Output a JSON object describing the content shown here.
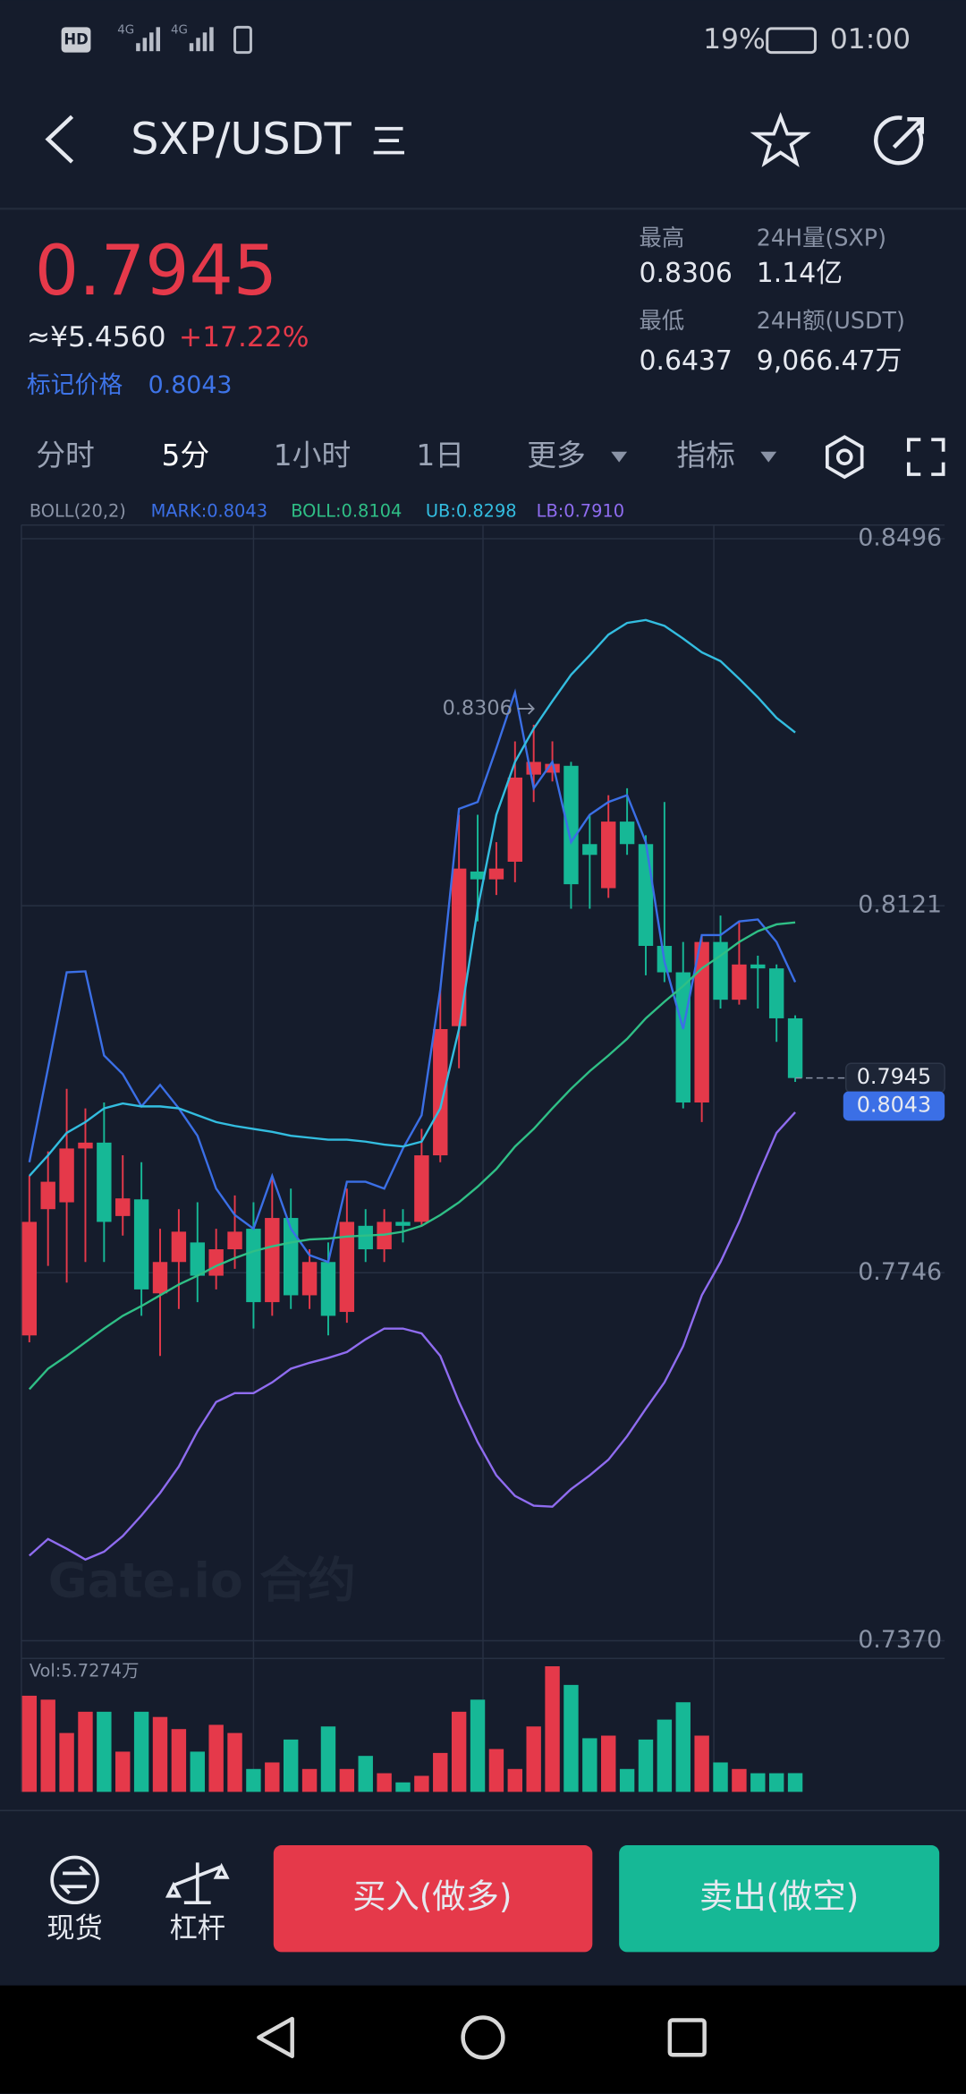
{
  "status_bar": {
    "hd": "HD",
    "network": [
      "4G",
      "4G"
    ],
    "battery": "19%",
    "time": "01:00"
  },
  "header": {
    "pair": "SXP/USDT"
  },
  "ticker": {
    "price": "0.7945",
    "cny": "≈¥5.4560",
    "change": "+17.22%",
    "mark_label": "标记价格",
    "mark_price": "0.8043",
    "stats": [
      {
        "label": "最高",
        "value": "0.8306"
      },
      {
        "label": "24H量(SXP)",
        "value": "1.14亿"
      },
      {
        "label": "最低",
        "value": "0.6437"
      },
      {
        "label": "24H额(USDT)",
        "value": "9,066.47万"
      }
    ]
  },
  "tabs": [
    "分时",
    "5分",
    "1小时",
    "1日",
    "更多",
    "指标"
  ],
  "active_tab": 1,
  "chart_data": {
    "type": "candlestick",
    "indicator": "BOLL(20,2)",
    "watermark": "Gate.io 合约",
    "up_color": "#e5394a",
    "down_color": "#16b896",
    "ylim": [
      0.7352,
      0.851
    ],
    "yticks": [
      0.8496,
      0.8121,
      0.7746,
      {
        "value": 0.737,
        "label": "0.7370"
      }
    ],
    "grid": true,
    "open": [
      0.7682,
      0.7811,
      0.7818,
      0.7873,
      0.7879,
      0.7804,
      0.7821,
      0.7725,
      0.7757,
      0.7777,
      0.7743,
      0.777,
      0.7791,
      0.7716,
      0.7802,
      0.7723,
      0.7757,
      0.7706,
      0.7794,
      0.777,
      0.7798,
      0.7798,
      0.7866,
      0.7998,
      0.8156,
      0.8148,
      0.8166,
      0.8255,
      0.8257,
      0.8264,
      0.8184,
      0.8139,
      0.8207,
      0.8184,
      0.808,
      0.8053,
      0.792,
      0.8084,
      0.8025,
      0.8061,
      0.8057,
      0.8006
    ],
    "high": [
      0.7845,
      0.787,
      0.7934,
      0.7914,
      0.792,
      0.7866,
      0.7859,
      0.7791,
      0.7811,
      0.7818,
      0.7791,
      0.7825,
      0.7818,
      0.7845,
      0.7832,
      0.777,
      0.7777,
      0.7832,
      0.7811,
      0.7811,
      0.7811,
      0.7893,
      0.8036,
      0.8214,
      0.8214,
      0.8186,
      0.8289,
      0.8306,
      0.8289,
      0.8268,
      0.8214,
      0.8234,
      0.8241,
      0.8193,
      0.8227,
      0.8084,
      0.8091,
      0.8111,
      0.8105,
      0.807,
      0.8061,
      0.8009
    ],
    "low": [
      0.7675,
      0.7753,
      0.7736,
      0.7757,
      0.7757,
      0.7784,
      0.7702,
      0.7661,
      0.7709,
      0.7716,
      0.7729,
      0.775,
      0.7689,
      0.7702,
      0.7709,
      0.7709,
      0.7682,
      0.7695,
      0.7757,
      0.7757,
      0.7777,
      0.7794,
      0.7859,
      0.7955,
      0.8105,
      0.8132,
      0.8145,
      0.8227,
      0.8248,
      0.8118,
      0.8118,
      0.8129,
      0.8173,
      0.805,
      0.8043,
      0.7914,
      0.79,
      0.8016,
      0.802,
      0.8016,
      0.7982,
      0.7941
    ],
    "close": [
      0.7798,
      0.7839,
      0.7873,
      0.7879,
      0.7798,
      0.7822,
      0.7729,
      0.7757,
      0.7788,
      0.7743,
      0.777,
      0.7788,
      0.7716,
      0.7802,
      0.7723,
      0.7757,
      0.7702,
      0.7798,
      0.777,
      0.7798,
      0.7794,
      0.7866,
      0.7995,
      0.8159,
      0.8148,
      0.8159,
      0.8252,
      0.8268,
      0.8266,
      0.8143,
      0.8173,
      0.8207,
      0.8184,
      0.808,
      0.8053,
      0.792,
      0.8084,
      0.8025,
      0.8061,
      0.8057,
      0.8006,
      0.7945
    ],
    "series": [
      {
        "legend": "MARK:0.8043",
        "color": "#3b6fe6",
        "values": [
          0.7859,
          0.7955,
          0.8053,
          0.8054,
          0.7968,
          0.7949,
          0.7916,
          0.7938,
          0.7914,
          0.7886,
          0.7832,
          0.7805,
          0.7791,
          0.7845,
          0.7791,
          0.7764,
          0.7757,
          0.7839,
          0.7839,
          0.7832,
          0.7873,
          0.7907,
          0.8036,
          0.822,
          0.8227,
          0.8282,
          0.8339,
          0.8241,
          0.8268,
          0.8186,
          0.8214,
          0.8227,
          0.8234,
          0.8186,
          0.8064,
          0.7995,
          0.8091,
          0.8091,
          0.8105,
          0.8107,
          0.8084,
          0.8043
        ]
      },
      {
        "legend": "BOLL:0.8104",
        "color": "#2fbf86",
        "values": [
          0.7627,
          0.7648,
          0.7661,
          0.7675,
          0.7689,
          0.7702,
          0.7712,
          0.7723,
          0.7734,
          0.7743,
          0.7753,
          0.7761,
          0.7768,
          0.7773,
          0.7777,
          0.778,
          0.7781,
          0.7783,
          0.7784,
          0.7785,
          0.7788,
          0.7794,
          0.7805,
          0.7818,
          0.7834,
          0.7852,
          0.7875,
          0.7893,
          0.7914,
          0.7934,
          0.7952,
          0.7968,
          0.7985,
          0.8006,
          0.8023,
          0.8039,
          0.8057,
          0.807,
          0.8084,
          0.8095,
          0.8102,
          0.8104
        ]
      },
      {
        "legend": "UB:0.8298",
        "color": "#33bde0",
        "values": [
          0.7845,
          0.7866,
          0.7889,
          0.79,
          0.7914,
          0.7919,
          0.7916,
          0.7916,
          0.7914,
          0.7907,
          0.79,
          0.7896,
          0.7893,
          0.789,
          0.7886,
          0.7884,
          0.7882,
          0.7882,
          0.788,
          0.7877,
          0.7875,
          0.788,
          0.7914,
          0.7995,
          0.8118,
          0.8214,
          0.8268,
          0.8302,
          0.833,
          0.8357,
          0.8377,
          0.8398,
          0.841,
          0.8413,
          0.8407,
          0.8394,
          0.838,
          0.8371,
          0.8353,
          0.8334,
          0.8313,
          0.8298
        ]
      },
      {
        "legend": "LB:0.7910",
        "color": "#8f6cf0",
        "values": [
          0.7457,
          0.7474,
          0.7464,
          0.7453,
          0.7461,
          0.7477,
          0.7498,
          0.7521,
          0.7548,
          0.7584,
          0.7614,
          0.7623,
          0.7623,
          0.7634,
          0.7648,
          0.7654,
          0.7659,
          0.7665,
          0.7678,
          0.7689,
          0.7689,
          0.7684,
          0.7661,
          0.7614,
          0.7573,
          0.7539,
          0.7518,
          0.7508,
          0.7507,
          0.7525,
          0.7539,
          0.7555,
          0.7579,
          0.7607,
          0.7634,
          0.7671,
          0.7723,
          0.7757,
          0.7798,
          0.7845,
          0.7889,
          0.791
        ]
      }
    ],
    "max_label": "0.8306",
    "last_label": "0.7945",
    "mark_label": "0.8043",
    "volume_label": "Vol:5.7274万",
    "volume": [
      29.4,
      28.2,
      18.0,
      24.5,
      24.5,
      12.3,
      24.5,
      22.9,
      19.2,
      12.3,
      20.5,
      18.0,
      7.0,
      9.0,
      16.0,
      7.0,
      20.0,
      7.0,
      11.0,
      5.7,
      2.9,
      4.9,
      11.9,
      24.5,
      28.2,
      13.1,
      7.0,
      20.0,
      38.4,
      32.7,
      16.4,
      17.2,
      7.0,
      16.0,
      22.1,
      27.4,
      17.2,
      9.0,
      7.0,
      5.7,
      5.7,
      5.7274
    ]
  },
  "bottom": {
    "spot": "现货",
    "leverage": "杠杆",
    "buy": "买入(做多)",
    "sell": "卖出(做空)"
  }
}
